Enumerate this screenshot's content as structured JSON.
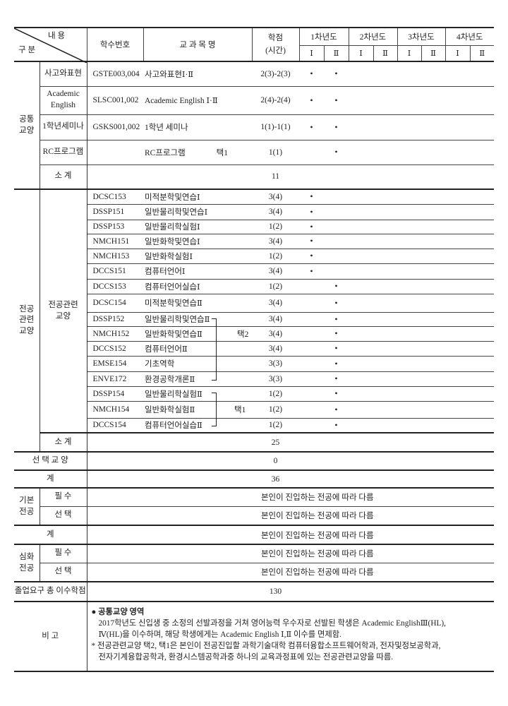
{
  "header": {
    "content": "내 용",
    "category": "구 분",
    "code": "학수번호",
    "course_name": "교 과 목 명",
    "credits": "학점",
    "hours": "(시간)",
    "years": [
      "1차년도",
      "2차년도",
      "3차년도",
      "4차년도"
    ],
    "semesters": [
      "Ⅰ",
      "Ⅱ",
      "Ⅰ",
      "Ⅱ",
      "Ⅰ",
      "Ⅱ",
      "Ⅰ",
      "Ⅱ"
    ]
  },
  "common": {
    "label": "공통\n교양",
    "rows": [
      {
        "area": "사고와표현",
        "code": "GSTE003,004",
        "name": "사고와표현Ⅰ·Ⅱ",
        "note": "",
        "credits": "2(3)-2(3)",
        "marks": [
          "•",
          "•",
          "",
          "",
          "",
          "",
          "",
          ""
        ]
      },
      {
        "area": "Academic English",
        "code": "SLSC001,002",
        "name": "Academic English  Ⅰ·Ⅱ",
        "note": "",
        "credits": "2(4)-2(4)",
        "marks": [
          "•",
          "•",
          "",
          "",
          "",
          "",
          "",
          ""
        ]
      },
      {
        "area": "1학년세미나",
        "code": "GSKS001,002",
        "name": "1학년 세미나",
        "note": "",
        "credits": "1(1)-1(1)",
        "marks": [
          "•",
          "•",
          "",
          "",
          "",
          "",
          "",
          ""
        ]
      },
      {
        "area": "RC프로그램",
        "code": "",
        "name": "RC프로그램",
        "note": "택1",
        "credits": "1(1)",
        "marks": [
          "",
          "•",
          "",
          "",
          "",
          "",
          "",
          ""
        ]
      }
    ],
    "subtotal_label": "소 계",
    "subtotal": "11"
  },
  "major_related": {
    "label": "전공\n관련\n교양",
    "sub_label": "전공관련\n교양",
    "rows": [
      {
        "code": "DCSC153",
        "name": "미적분학및연습Ⅰ",
        "credits": "3(4)",
        "sem": 0
      },
      {
        "code": "DSSP151",
        "name": "일반물리학및연습Ⅰ",
        "credits": "3(4)",
        "sem": 0
      },
      {
        "code": "DSSP153",
        "name": "일반물리학실험Ⅰ",
        "credits": "1(2)",
        "sem": 0
      },
      {
        "code": "NMCH151",
        "name": "일반화학및연습Ⅰ",
        "credits": "3(4)",
        "sem": 0
      },
      {
        "code": "NMCH153",
        "name": "일반화학실험Ⅰ",
        "credits": "1(2)",
        "sem": 0
      },
      {
        "code": "DCCS151",
        "name": "컴퓨터언어Ⅰ",
        "credits": "3(4)",
        "sem": 0
      },
      {
        "code": "DCCS153",
        "name": "컴퓨터언어실습Ⅰ",
        "credits": "1(2)",
        "sem": 1
      },
      {
        "code": "DCSC154",
        "name": "미적분학및연습Ⅱ",
        "credits": "3(4)",
        "sem": 1
      },
      {
        "code": "DSSP152",
        "name": "일반물리학및연습Ⅱ",
        "credits": "3(4)",
        "sem": 1
      },
      {
        "code": "NMCH152",
        "name": "일반화학및연습Ⅱ",
        "credits": "3(4)",
        "sem": 1
      },
      {
        "code": "DCCS152",
        "name": "컴퓨터언어Ⅱ",
        "credits": "3(4)",
        "sem": 1
      },
      {
        "code": "EMSE154",
        "name": "기초역학",
        "credits": "3(3)",
        "sem": 1
      },
      {
        "code": "ENVE172",
        "name": "환경공학개론Ⅱ",
        "credits": "3(3)",
        "sem": 1
      },
      {
        "code": "DSSP154",
        "name": "일반물리학실험Ⅱ",
        "credits": "1(2)",
        "sem": 1
      },
      {
        "code": "NMCH154",
        "name": "일반화학실험Ⅱ",
        "credits": "1(2)",
        "sem": 1
      },
      {
        "code": "DCCS154",
        "name": "컴퓨터언어실습Ⅱ",
        "credits": "1(2)",
        "sem": 1
      }
    ],
    "mark": "•",
    "choose2": "택2",
    "choose1": "택1",
    "subtotal_label": "소 계",
    "subtotal": "25"
  },
  "elective": {
    "label": "선 택 교 양",
    "value": "0"
  },
  "total": {
    "label": "계",
    "value": "36"
  },
  "basic_major": {
    "label": "기본\n전공",
    "required_label": "필 수",
    "required": "본인이 진입하는 전공에 따라 다름",
    "elective_label": "선 택",
    "elective": "본인이 진입하는 전공에 따라 다름",
    "total_label": "계",
    "total": "본인이 진입하는 전공에 따라 다름"
  },
  "advanced_major": {
    "label": "심화\n전공",
    "required_label": "필 수",
    "required": "본인이 진입하는 전공에 따라 다름",
    "elective_label": "선 택",
    "elective": "본인이 진입하는 전공에 따라 다름"
  },
  "graduation": {
    "label": "졸업요구 총 이수학점",
    "value": "130"
  },
  "remarks": {
    "label": "비 고",
    "heading": "● 공통교양 영역",
    "lines": [
      "2017학년도 신입생 중 소정의 선발과정을 거쳐 영어능력 우수자로 선발된 학생은 Academic EnglishⅢ(HL),",
      "Ⅳ(HL)을 이수하며, 해당 학생에게는 Academic English Ⅰ,Ⅱ 이수를 면제함.",
      "* 전공관련교양 택2, 택1은 본인이 전공진입할 과학기술대학 컴퓨터융합소프트웨어학과, 전자및정보공학과,",
      "전자기계융합공학과, 환경시스템공학과중 하나의 교육과정표에 있는 전공관련교양을 따름."
    ]
  }
}
